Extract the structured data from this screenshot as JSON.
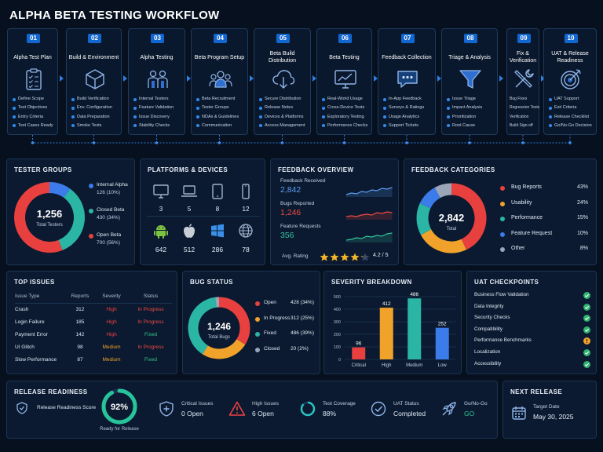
{
  "title": "ALPHA BETA TESTING WORKFLOW",
  "workflow": [
    {
      "num": "01",
      "title": "Alpha Test Plan",
      "icon": "clipboard-icon",
      "items": [
        "Define Scope",
        "Test Objectives",
        "Entry Criteria",
        "Test Cases Ready"
      ]
    },
    {
      "num": "02",
      "title": "Build & Environment",
      "icon": "cube-icon",
      "items": [
        "Build Verification",
        "Env. Configuration",
        "Data Preparation",
        "Smoke Tests"
      ]
    },
    {
      "num": "03",
      "title": "Alpha Testing",
      "icon": "team-icon",
      "items": [
        "Internal Testers",
        "Feature Validation",
        "Issue Discovery",
        "Stability Checks"
      ]
    },
    {
      "num": "04",
      "title": "Beta Program Setup",
      "icon": "group-icon",
      "items": [
        "Beta Recruitment",
        "Tester Groups",
        "NDAs & Guidelines",
        "Communication"
      ]
    },
    {
      "num": "05",
      "title": "Beta Build Distribution",
      "icon": "cloud-download-icon",
      "items": [
        "Secure Distribution",
        "Release Notes",
        "Devices & Platforms",
        "Access Management"
      ]
    },
    {
      "num": "06",
      "title": "Beta Testing",
      "icon": "monitor-chart-icon",
      "items": [
        "Real-World Usage",
        "Cross-Device Tests",
        "Exploratory Testing",
        "Performance Checks"
      ]
    },
    {
      "num": "07",
      "title": "Feedback Collection",
      "icon": "chat-icon",
      "items": [
        "In-App Feedback",
        "Surveys & Ratings",
        "Usage Analytics",
        "Support Tickets"
      ]
    },
    {
      "num": "08",
      "title": "Triage & Analysis",
      "icon": "funnel-icon",
      "items": [
        "Issue Triage",
        "Impact Analysis",
        "Prioritization",
        "Root Cause"
      ]
    },
    {
      "num": "09",
      "title": "Fix & Verification",
      "icon": "tools-icon",
      "items": [
        "Bug Fixes",
        "Regression Tests",
        "Verification",
        "Build Sign-off"
      ]
    },
    {
      "num": "10",
      "title": "UAT & Release Readiness",
      "icon": "target-icon",
      "items": [
        "UAT Support",
        "Exit Criteria",
        "Release Checklist",
        "Go/No-Go Decision"
      ]
    }
  ],
  "tester_groups": {
    "title": "TESTER GROUPS",
    "total": "1,256",
    "total_label": "Total Testers",
    "groups": [
      {
        "name": "Internal Alpha",
        "value": "126 (10%)",
        "share": 10,
        "color": "#3b7bea"
      },
      {
        "name": "Closed Beta",
        "value": "430 (34%)",
        "share": 34,
        "color": "#2bb5a4"
      },
      {
        "name": "Open Beta",
        "value": "700 (56%)",
        "share": 56,
        "color": "#e8403e"
      }
    ]
  },
  "platforms": {
    "title": "PLATFORMS & DEVICES",
    "devices": [
      {
        "icon": "desktop-icon",
        "value": "3"
      },
      {
        "icon": "laptop-icon",
        "value": "5"
      },
      {
        "icon": "tablet-icon",
        "value": "8"
      },
      {
        "icon": "phone-icon",
        "value": "12"
      }
    ],
    "os": [
      {
        "icon": "android-icon",
        "value": "642",
        "color": "#7dc242"
      },
      {
        "icon": "apple-icon",
        "value": "512",
        "color": "#c9ced6"
      },
      {
        "icon": "windows-icon",
        "value": "286",
        "color": "#3a8fe8"
      },
      {
        "icon": "globe-icon",
        "value": "78",
        "color": "#9fb3cc"
      }
    ]
  },
  "feedback_overview": {
    "title": "FEEDBACK OVERVIEW",
    "metrics": [
      {
        "label": "Feedback Received",
        "value": "2,842",
        "color": "#5b9cf3"
      },
      {
        "label": "Bugs Reported",
        "value": "1,246",
        "color": "#ee4a43"
      },
      {
        "label": "Feature Requests",
        "value": "356",
        "color": "#33c39a"
      }
    ],
    "rating_label": "Avg. Rating",
    "rating_value": "4.2 / 5",
    "rating": 4.2
  },
  "feedback_categories": {
    "title": "FEEDBACK CATEGORIES",
    "total": "2,842",
    "total_label": "Total",
    "items": [
      {
        "name": "Bug Reports",
        "pct": "43%",
        "share": 43,
        "color": "#e8403e"
      },
      {
        "name": "Usability",
        "pct": "24%",
        "share": 24,
        "color": "#f0a22a"
      },
      {
        "name": "Performance",
        "pct": "15%",
        "share": 15,
        "color": "#2bb5a4"
      },
      {
        "name": "Feature Request",
        "pct": "10%",
        "share": 10,
        "color": "#3b7bea"
      },
      {
        "name": "Other",
        "pct": "8%",
        "share": 8,
        "color": "#9aa6b8"
      }
    ]
  },
  "top_issues": {
    "title": "TOP ISSUES",
    "headers": [
      "Issue Type",
      "Reports",
      "Severity",
      "Status"
    ],
    "rows": [
      {
        "type": "Crash",
        "reports": "312",
        "severity": "High",
        "status": "In Progress"
      },
      {
        "type": "Login Failure",
        "reports": "185",
        "severity": "High",
        "status": "In Progress"
      },
      {
        "type": "Payment Error",
        "reports": "142",
        "severity": "High",
        "status": "Fixed"
      },
      {
        "type": "UI Glitch",
        "reports": "98",
        "severity": "Medium",
        "status": "In Progress"
      },
      {
        "type": "Slow Performance",
        "reports": "87",
        "severity": "Medium",
        "status": "Fixed"
      }
    ]
  },
  "bug_status": {
    "title": "BUG STATUS",
    "total": "1,246",
    "total_label": "Total Bugs",
    "items": [
      {
        "name": "Open",
        "value": "428 (34%)",
        "share": 34,
        "color": "#e8403e"
      },
      {
        "name": "In Progress",
        "value": "312 (25%)",
        "share": 25,
        "color": "#f0a22a"
      },
      {
        "name": "Fixed",
        "value": "486 (39%)",
        "share": 39,
        "color": "#2bb5a4"
      },
      {
        "name": "Closed",
        "value": "20 (2%)",
        "share": 2,
        "color": "#9aa6b8"
      }
    ]
  },
  "severity_breakdown": {
    "title": "SEVERITY BREAKDOWN",
    "chart_data": {
      "type": "bar",
      "categories": [
        "Critical",
        "High",
        "Medium",
        "Low"
      ],
      "values": [
        96,
        412,
        486,
        252
      ],
      "colors": [
        "#e8403e",
        "#f0a22a",
        "#2bb5a4",
        "#3b7bea"
      ],
      "ylim": [
        0,
        500
      ],
      "yticks": [
        "500",
        "400",
        "300",
        "200",
        "100",
        "0"
      ],
      "grid": true
    }
  },
  "uat_checkpoints": {
    "title": "UAT CHECKPOINTS",
    "items": [
      {
        "name": "Business Flow Validation",
        "state": "done"
      },
      {
        "name": "Data Integrity",
        "state": "done"
      },
      {
        "name": "Security Checks",
        "state": "done"
      },
      {
        "name": "Compatibility",
        "state": "done"
      },
      {
        "name": "Performance Benchmarks",
        "state": "warning"
      },
      {
        "name": "Localization",
        "state": "done"
      },
      {
        "name": "Accessibility",
        "state": "done"
      }
    ]
  },
  "release_readiness": {
    "title": "RELEASE READINESS",
    "score_label": "Release Readiness Score",
    "score": "92%",
    "score_value": 92,
    "score_caption": "Ready for Release",
    "metrics": [
      {
        "icon": "shield-plus-icon",
        "label": "Critical Issues",
        "value": "0 Open"
      },
      {
        "icon": "warning-icon",
        "label": "High Issues",
        "value": "6 Open"
      },
      {
        "icon": "progress-ring-icon",
        "label": "Test Coverage",
        "value": "88%"
      },
      {
        "icon": "check-circle-icon",
        "label": "UAT Status",
        "value": "Completed"
      },
      {
        "icon": "rocket-icon",
        "label": "Go/No-Go",
        "value": "GO"
      }
    ]
  },
  "next_release": {
    "title": "NEXT RELEASE",
    "label": "Target Date",
    "date": "May 30, 2025"
  }
}
